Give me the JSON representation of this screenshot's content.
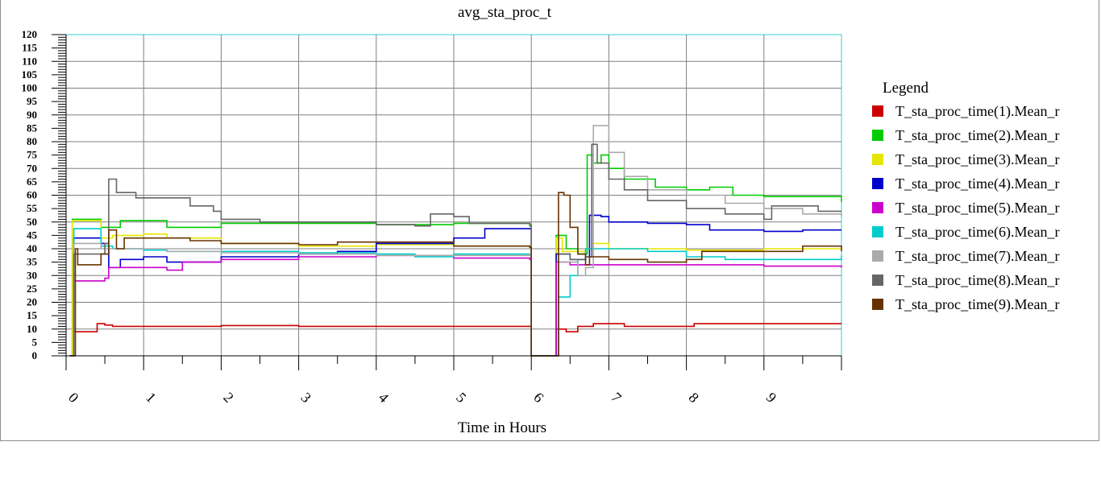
{
  "chart_data": {
    "type": "line",
    "title": "avg_sta_proc_t",
    "xlabel": "Time in Hours",
    "ylabel": "",
    "xlim": [
      0,
      10
    ],
    "ylim": [
      0,
      120
    ],
    "x_ticks": [
      "0",
      "1",
      "2",
      "3",
      "4",
      "5",
      "6",
      "7",
      "8",
      "9"
    ],
    "y_ticks": [
      "0",
      "5",
      "10",
      "15",
      "20",
      "25",
      "30",
      "35",
      "40",
      "45",
      "50",
      "55",
      "60",
      "65",
      "70",
      "75",
      "80",
      "85",
      "90",
      "95",
      "100",
      "105",
      "110",
      "115",
      "120"
    ],
    "grid": true,
    "grid_color": "#808080",
    "frame_color": "#33cccc",
    "legend_title": "Legend",
    "legend_position": "right",
    "series": [
      {
        "name": "T_sta_proc_time(1).Mean_r",
        "color": "#cc0000",
        "points": [
          [
            0.05,
            0
          ],
          [
            0.08,
            9
          ],
          [
            0.35,
            9
          ],
          [
            0.4,
            12
          ],
          [
            0.5,
            11.5
          ],
          [
            0.6,
            11
          ],
          [
            1,
            11
          ],
          [
            2,
            11.3
          ],
          [
            3,
            11
          ],
          [
            4,
            11
          ],
          [
            5,
            11
          ],
          [
            5.98,
            11
          ],
          [
            6.0,
            0
          ],
          [
            6.3,
            0
          ],
          [
            6.32,
            10
          ],
          [
            6.45,
            9
          ],
          [
            6.6,
            11
          ],
          [
            6.8,
            12
          ],
          [
            7.2,
            11
          ],
          [
            8.1,
            12
          ],
          [
            9,
            12
          ],
          [
            10,
            12
          ]
        ]
      },
      {
        "name": "T_sta_proc_time(2).Mean_r",
        "color": "#00cc00",
        "points": [
          [
            0.05,
            0
          ],
          [
            0.08,
            51
          ],
          [
            0.4,
            51
          ],
          [
            0.45,
            48
          ],
          [
            0.7,
            50.5
          ],
          [
            1,
            50.5
          ],
          [
            1.3,
            48
          ],
          [
            2,
            49.5
          ],
          [
            3,
            49.5
          ],
          [
            4,
            49
          ],
          [
            5,
            49.5
          ],
          [
            5.98,
            49
          ],
          [
            6.0,
            0
          ],
          [
            6.3,
            0
          ],
          [
            6.32,
            45
          ],
          [
            6.45,
            40
          ],
          [
            6.6,
            38
          ],
          [
            6.7,
            38
          ],
          [
            6.72,
            75
          ],
          [
            6.8,
            72
          ],
          [
            6.9,
            75
          ],
          [
            7.0,
            70
          ],
          [
            7.2,
            66
          ],
          [
            7.6,
            63
          ],
          [
            8,
            62
          ],
          [
            8.3,
            63
          ],
          [
            8.6,
            60
          ],
          [
            9,
            59.5
          ],
          [
            10,
            57.5
          ]
        ]
      },
      {
        "name": "T_sta_proc_time(3).Mean_r",
        "color": "#e6e600",
        "points": [
          [
            0.05,
            0
          ],
          [
            0.08,
            50.5
          ],
          [
            0.4,
            50.5
          ],
          [
            0.45,
            44
          ],
          [
            0.6,
            45
          ],
          [
            1,
            45.5
          ],
          [
            1.3,
            44
          ],
          [
            2,
            42
          ],
          [
            3,
            41
          ],
          [
            4,
            41.5
          ],
          [
            5,
            41
          ],
          [
            5.98,
            41
          ],
          [
            6.0,
            0
          ],
          [
            6.3,
            0
          ],
          [
            6.32,
            44
          ],
          [
            6.4,
            39
          ],
          [
            6.7,
            40
          ],
          [
            6.8,
            42
          ],
          [
            7,
            40
          ],
          [
            8,
            39.5
          ],
          [
            9,
            40
          ],
          [
            10,
            40
          ]
        ]
      },
      {
        "name": "T_sta_proc_time(4).Mean_r",
        "color": "#0000cc",
        "points": [
          [
            0.05,
            0
          ],
          [
            0.1,
            44
          ],
          [
            0.4,
            44
          ],
          [
            0.45,
            42
          ],
          [
            0.55,
            33
          ],
          [
            0.7,
            36
          ],
          [
            1,
            37
          ],
          [
            1.3,
            35
          ],
          [
            2,
            37
          ],
          [
            3,
            38
          ],
          [
            3.5,
            39
          ],
          [
            4,
            42
          ],
          [
            5,
            44
          ],
          [
            5.4,
            47.5
          ],
          [
            5.98,
            47.5
          ],
          [
            6.0,
            0
          ],
          [
            6.3,
            0
          ],
          [
            6.32,
            38
          ],
          [
            6.5,
            36
          ],
          [
            6.7,
            37
          ],
          [
            6.75,
            52.5
          ],
          [
            6.9,
            52
          ],
          [
            7,
            50
          ],
          [
            7.5,
            49.5
          ],
          [
            8,
            49
          ],
          [
            8.3,
            47
          ],
          [
            9,
            46.5
          ],
          [
            9.5,
            47
          ],
          [
            10,
            47
          ]
        ]
      },
      {
        "name": "T_sta_proc_time(5).Mean_r",
        "color": "#cc00cc",
        "points": [
          [
            0.05,
            0
          ],
          [
            0.1,
            28
          ],
          [
            0.5,
            29
          ],
          [
            0.55,
            33
          ],
          [
            1,
            33
          ],
          [
            1.3,
            32
          ],
          [
            1.5,
            35
          ],
          [
            2,
            36
          ],
          [
            3,
            37
          ],
          [
            4,
            37.5
          ],
          [
            5,
            36.5
          ],
          [
            5.98,
            36
          ],
          [
            6.0,
            0
          ],
          [
            6.3,
            0
          ],
          [
            6.32,
            35
          ],
          [
            6.5,
            34
          ],
          [
            7,
            34
          ],
          [
            7.5,
            34
          ],
          [
            8,
            34
          ],
          [
            9,
            33.5
          ],
          [
            10,
            33
          ]
        ]
      },
      {
        "name": "T_sta_proc_time(6).Mean_r",
        "color": "#00cccc",
        "points": [
          [
            0.05,
            0
          ],
          [
            0.1,
            47.5
          ],
          [
            0.4,
            47.5
          ],
          [
            0.45,
            41
          ],
          [
            0.6,
            40
          ],
          [
            1,
            39.5
          ],
          [
            1.3,
            39
          ],
          [
            2,
            39
          ],
          [
            3,
            38.5
          ],
          [
            4,
            38
          ],
          [
            4.5,
            37
          ],
          [
            5,
            38
          ],
          [
            5.98,
            38
          ],
          [
            6.0,
            0
          ],
          [
            6.3,
            0
          ],
          [
            6.35,
            22
          ],
          [
            6.5,
            30
          ],
          [
            6.6,
            36
          ],
          [
            6.7,
            40
          ],
          [
            7,
            40
          ],
          [
            7.5,
            39
          ],
          [
            8,
            37
          ],
          [
            8.5,
            36
          ],
          [
            9,
            36
          ],
          [
            9.5,
            36
          ],
          [
            10,
            37.5
          ]
        ]
      },
      {
        "name": "T_sta_proc_time(7).Mean_r",
        "color": "#aaaaaa",
        "points": [
          [
            0.05,
            0
          ],
          [
            0.1,
            42
          ],
          [
            0.4,
            42
          ],
          [
            0.45,
            40
          ],
          [
            1,
            40
          ],
          [
            1.3,
            39
          ],
          [
            2,
            38.5
          ],
          [
            3,
            38
          ],
          [
            4,
            37.5
          ],
          [
            5,
            37.5
          ],
          [
            5.98,
            38
          ],
          [
            6.0,
            0
          ],
          [
            6.3,
            0
          ],
          [
            6.35,
            35
          ],
          [
            6.6,
            30
          ],
          [
            6.7,
            33
          ],
          [
            6.8,
            86
          ],
          [
            6.95,
            86
          ],
          [
            7.0,
            76
          ],
          [
            7.2,
            67
          ],
          [
            7.5,
            62
          ],
          [
            8,
            60
          ],
          [
            8.5,
            57
          ],
          [
            9,
            55
          ],
          [
            9.5,
            53
          ],
          [
            10,
            52
          ]
        ]
      },
      {
        "name": "T_sta_proc_time(8).Mean_r",
        "color": "#666666",
        "points": [
          [
            0.05,
            0
          ],
          [
            0.1,
            38
          ],
          [
            0.4,
            38
          ],
          [
            0.5,
            42
          ],
          [
            0.55,
            66
          ],
          [
            0.65,
            61
          ],
          [
            0.9,
            59
          ],
          [
            1.3,
            59
          ],
          [
            1.6,
            56
          ],
          [
            1.9,
            54
          ],
          [
            2.0,
            51
          ],
          [
            2.5,
            50
          ],
          [
            3,
            50
          ],
          [
            3.5,
            50
          ],
          [
            4,
            49
          ],
          [
            4.5,
            48.5
          ],
          [
            4.7,
            53
          ],
          [
            5,
            52
          ],
          [
            5.2,
            49.5
          ],
          [
            5.98,
            48.5
          ],
          [
            6.0,
            0
          ],
          [
            6.3,
            0
          ],
          [
            6.35,
            38
          ],
          [
            6.5,
            36
          ],
          [
            6.7,
            37
          ],
          [
            6.78,
            79
          ],
          [
            6.85,
            72
          ],
          [
            7,
            66
          ],
          [
            7.2,
            62
          ],
          [
            7.5,
            58
          ],
          [
            8,
            55
          ],
          [
            8.5,
            53
          ],
          [
            9,
            51
          ],
          [
            9.1,
            56
          ],
          [
            9.5,
            56
          ],
          [
            9.7,
            54
          ],
          [
            10,
            54
          ]
        ]
      },
      {
        "name": "T_sta_proc_time(9).Mean_r",
        "color": "#663300",
        "points": [
          [
            0.05,
            0
          ],
          [
            0.12,
            40
          ],
          [
            0.15,
            34
          ],
          [
            0.4,
            34
          ],
          [
            0.45,
            38
          ],
          [
            0.55,
            47
          ],
          [
            0.65,
            40
          ],
          [
            0.75,
            44
          ],
          [
            1,
            44
          ],
          [
            1.3,
            44
          ],
          [
            1.6,
            43
          ],
          [
            2,
            42
          ],
          [
            3,
            41.5
          ],
          [
            3.5,
            42.5
          ],
          [
            4,
            42.5
          ],
          [
            5,
            41
          ],
          [
            5.98,
            40.5
          ],
          [
            6.0,
            0
          ],
          [
            6.3,
            0
          ],
          [
            6.35,
            61
          ],
          [
            6.42,
            60
          ],
          [
            6.5,
            48
          ],
          [
            6.6,
            38
          ],
          [
            6.7,
            34
          ],
          [
            6.75,
            37
          ],
          [
            7,
            36
          ],
          [
            7.5,
            35
          ],
          [
            8,
            36
          ],
          [
            8.2,
            39
          ],
          [
            9,
            39
          ],
          [
            9.5,
            41
          ],
          [
            10,
            39
          ]
        ]
      }
    ]
  }
}
